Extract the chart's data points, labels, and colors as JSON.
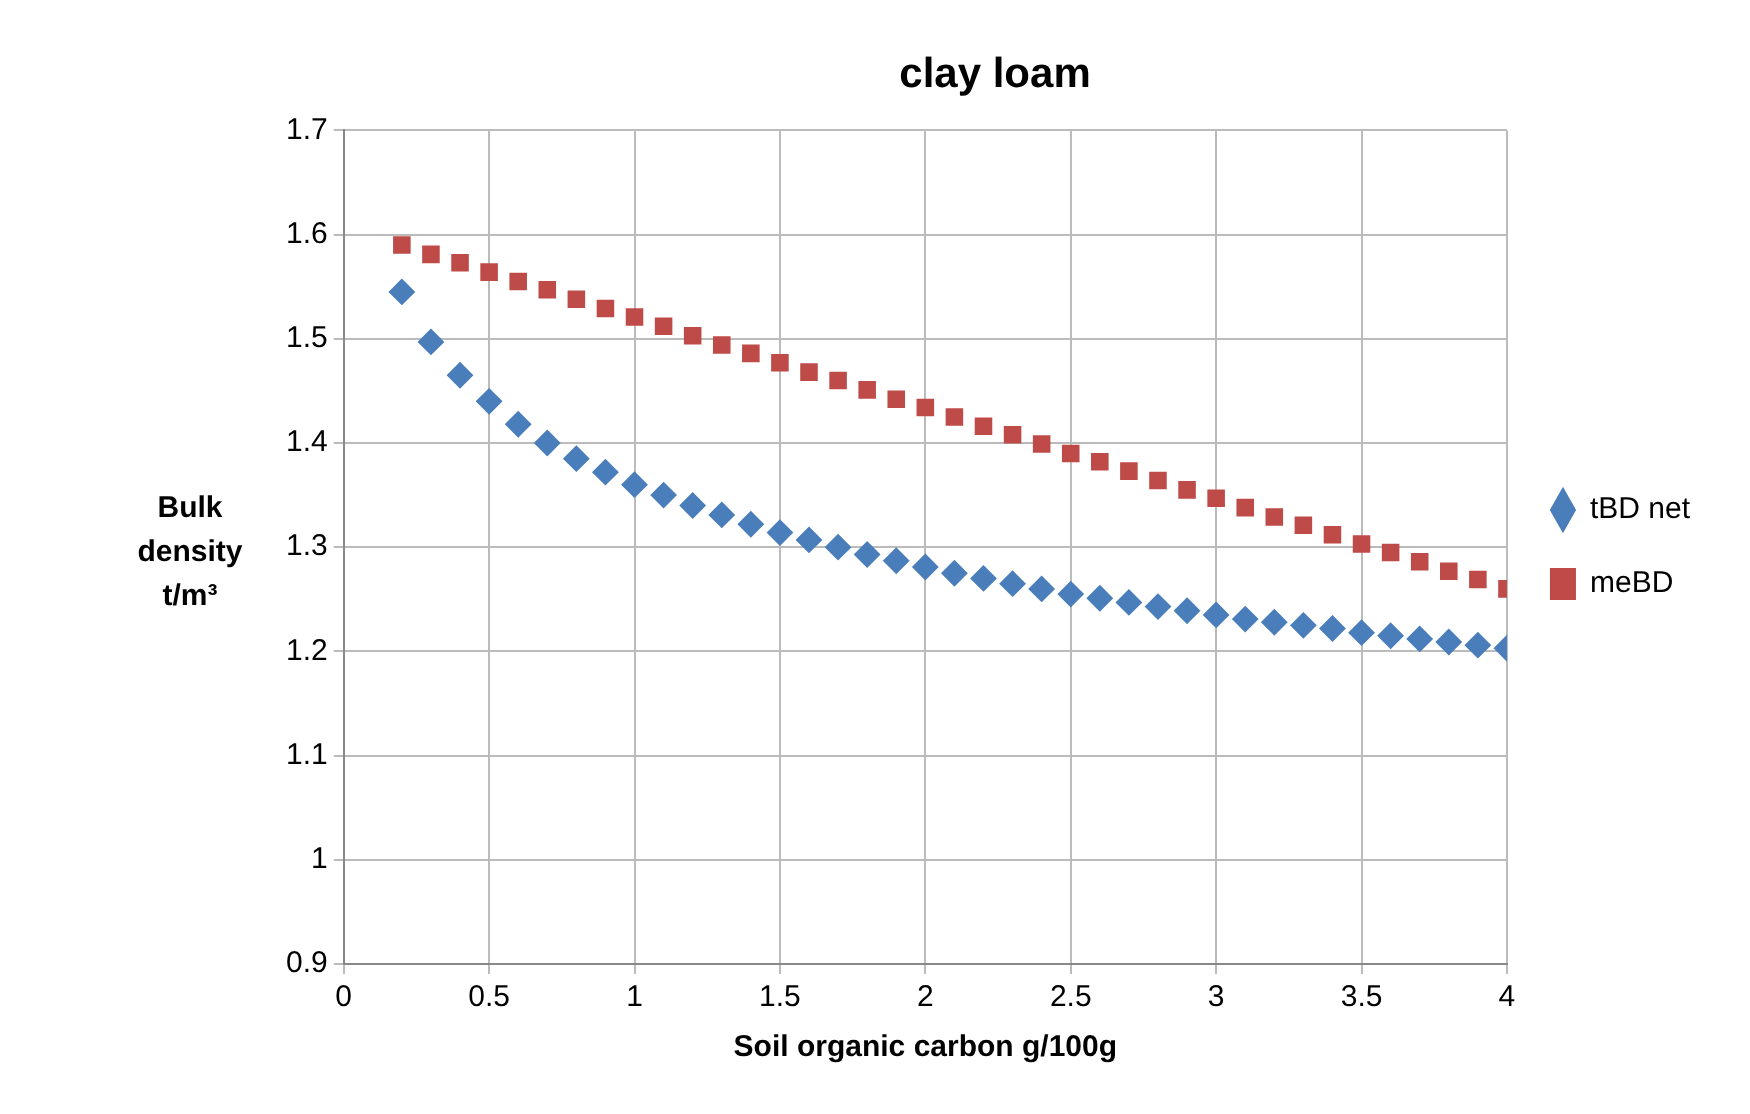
{
  "chart_data": {
    "type": "scatter",
    "title": "clay loam",
    "xlabel": "Soil organic carbon g/100g",
    "ylabel": "Bulk density t/m³",
    "x": [
      0.2,
      0.3,
      0.4,
      0.5,
      0.6,
      0.7,
      0.8,
      0.9,
      1.0,
      1.1,
      1.2,
      1.3,
      1.4,
      1.5,
      1.6,
      1.7,
      1.8,
      1.9,
      2.0,
      2.1,
      2.2,
      2.3,
      2.4,
      2.5,
      2.6,
      2.7,
      2.8,
      2.9,
      3.0,
      3.1,
      3.2,
      3.3,
      3.4,
      3.5,
      3.6,
      3.7,
      3.8,
      3.9,
      4.0
    ],
    "series": [
      {
        "name": "tBD net",
        "color": "#4a7ebb",
        "marker": "diamond",
        "values": [
          1.545,
          1.497,
          1.465,
          1.44,
          1.418,
          1.4,
          1.385,
          1.372,
          1.36,
          1.35,
          1.34,
          1.331,
          1.322,
          1.314,
          1.307,
          1.3,
          1.293,
          1.287,
          1.281,
          1.275,
          1.27,
          1.265,
          1.26,
          1.255,
          1.251,
          1.247,
          1.243,
          1.239,
          1.235,
          1.231,
          1.228,
          1.225,
          1.222,
          1.218,
          1.215,
          1.212,
          1.209,
          1.206,
          1.203
        ]
      },
      {
        "name": "meBD",
        "color": "#be4b48",
        "marker": "square",
        "values": [
          1.59,
          1.581,
          1.573,
          1.564,
          1.555,
          1.547,
          1.538,
          1.529,
          1.521,
          1.512,
          1.503,
          1.494,
          1.486,
          1.477,
          1.468,
          1.46,
          1.451,
          1.442,
          1.434,
          1.425,
          1.416,
          1.408,
          1.399,
          1.39,
          1.382,
          1.373,
          1.364,
          1.355,
          1.347,
          1.338,
          1.329,
          1.321,
          1.312,
          1.303,
          1.295,
          1.286,
          1.277,
          1.269,
          1.26
        ]
      }
    ],
    "xlim": [
      0,
      4
    ],
    "xticks": [
      0,
      0.5,
      1,
      1.5,
      2,
      2.5,
      3,
      3.5,
      4
    ],
    "ylim": [
      0.9,
      1.7
    ],
    "yticks": [
      0.9,
      1,
      1.1,
      1.2,
      1.3,
      1.4,
      1.5,
      1.6,
      1.7
    ],
    "grid": true,
    "legend": "right"
  }
}
